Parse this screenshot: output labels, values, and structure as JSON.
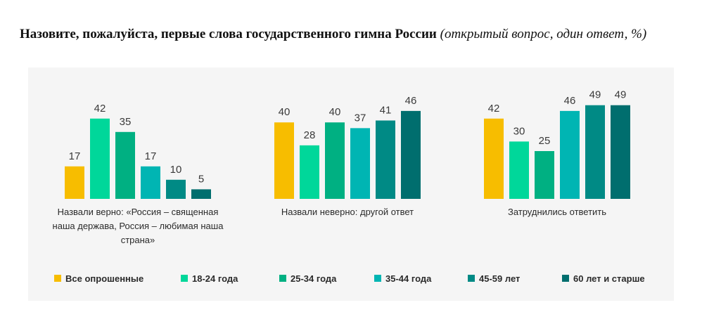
{
  "title": {
    "bold": "Назовите, пожалуйста, первые слова государственного гимна России",
    "italic": "(открытый вопрос, один ответ, %)"
  },
  "chart_data": {
    "type": "bar",
    "categories": [
      "Назвали верно: «Россия – священная наша держава, Россия – любимая наша страна»",
      "Назвали неверно: другой ответ",
      "Затруднились ответить"
    ],
    "category_label_lines": [
      [
        "Назвали верно: «Россия – священная",
        "наша держава, Россия – любимая наша",
        "страна»"
      ],
      [
        "Назвали неверно: другой ответ"
      ],
      [
        "Затруднились ответить"
      ]
    ],
    "series": [
      {
        "name": "Все опрошенные",
        "color": "#f7bd00",
        "values": [
          17,
          40,
          42
        ]
      },
      {
        "name": "18-24 года",
        "color": "#00d79a",
        "values": [
          42,
          28,
          30
        ]
      },
      {
        "name": "25-34 года",
        "color": "#00b082",
        "values": [
          35,
          40,
          25
        ]
      },
      {
        "name": "35-44 года",
        "color": "#00b5b3",
        "values": [
          17,
          37,
          46
        ]
      },
      {
        "name": "45-59 лет",
        "color": "#008a85",
        "values": [
          10,
          41,
          49
        ]
      },
      {
        "name": "60 лет и старше",
        "color": "#006e6e",
        "values": [
          5,
          46,
          49
        ]
      }
    ],
    "ylim": [
      0,
      50
    ],
    "grid": false,
    "legend_position": "bottom"
  }
}
